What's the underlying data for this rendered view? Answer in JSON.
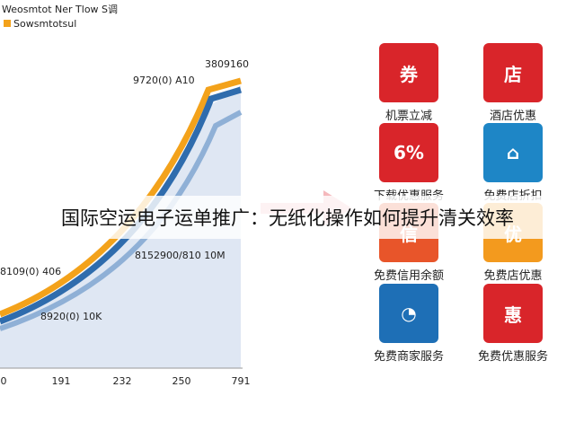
{
  "chart_panel": {
    "title": "Weosmtot Ner Tlow S调",
    "legend": "Sowsmtotsul",
    "labels": [
      "3809160",
      "9720(0) A10",
      "8109(0) 406",
      "8152900/810 10M",
      "8920(0) 10K"
    ],
    "x_ticks": [
      "0",
      "191",
      "232",
      "250",
      "791"
    ]
  },
  "caption": "国际空运电子运单推广：无纸化操作如何提升清关效率",
  "tiles": [
    {
      "glyph": "券",
      "label": "机票立减"
    },
    {
      "glyph": "店",
      "label": "酒店优惠"
    },
    {
      "glyph": "6%",
      "label": "下载优惠服务"
    },
    {
      "glyph": "⌂",
      "label": "免费店折扣"
    },
    {
      "glyph": "信",
      "label": "免费信用余额"
    },
    {
      "glyph": "优",
      "label": "免费店优惠"
    },
    {
      "glyph": "◔",
      "label": "免费商家服务"
    },
    {
      "glyph": "惠",
      "label": "免费优惠服务"
    }
  ]
}
